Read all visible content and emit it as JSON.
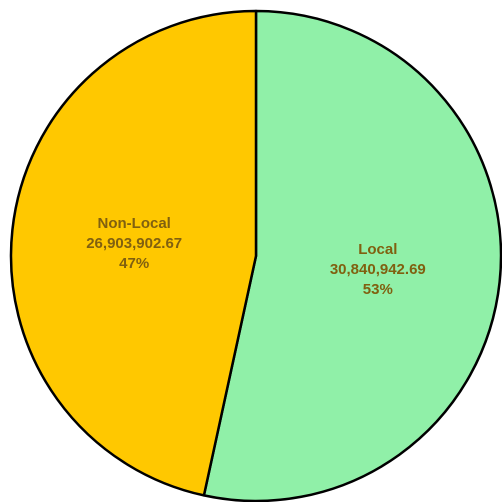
{
  "chart_data": {
    "type": "pie",
    "title": "",
    "start_angle_deg": 0,
    "direction": "clockwise",
    "slices": [
      {
        "name": "Local",
        "value": 30840942.69,
        "value_label": "30,840,942.69",
        "percent_label": "53%",
        "color": "#90f0a8"
      },
      {
        "name": "Non-Local",
        "value": 26903902.67,
        "value_label": "26,903,902.67",
        "percent_label": "47%",
        "color": "#ffc800"
      }
    ],
    "label_color": "#806010",
    "border_color": "#000000"
  }
}
